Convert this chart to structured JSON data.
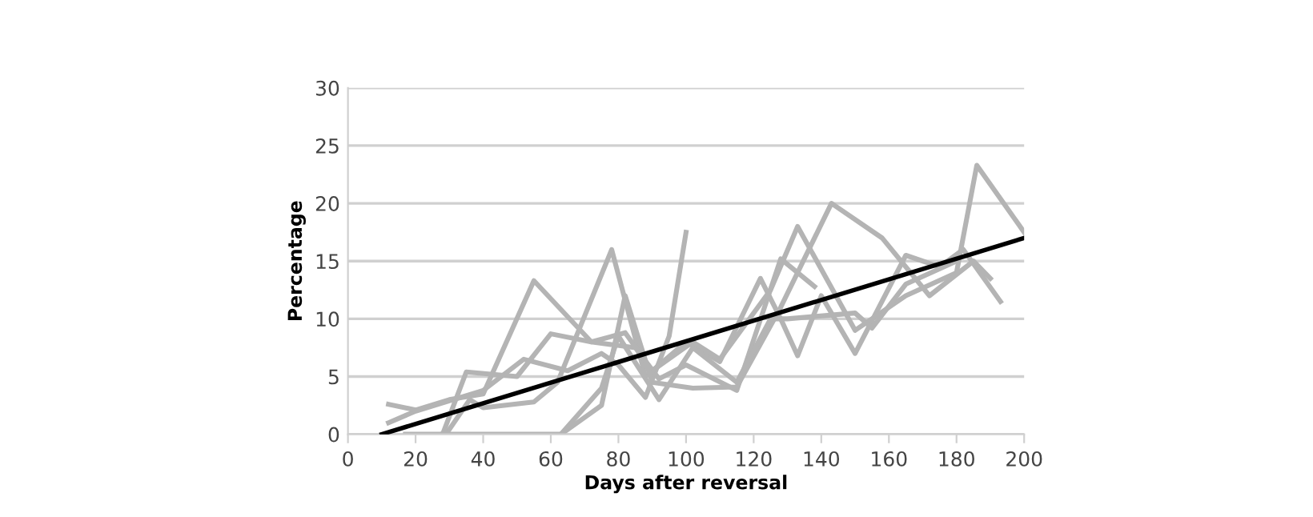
{
  "chart_data": {
    "type": "line",
    "xlabel": "Days after reversal",
    "ylabel": "Percentage",
    "xlim": [
      0,
      200
    ],
    "ylim": [
      0,
      30
    ],
    "xticks": [
      0,
      20,
      40,
      60,
      80,
      100,
      120,
      140,
      160,
      180,
      200
    ],
    "yticks": [
      0,
      5,
      10,
      15,
      20,
      25,
      30
    ],
    "grid": "y",
    "marker": "none",
    "line_style": "solid",
    "series": [
      {
        "color": "#b4b4b4",
        "x": [
          12,
          20,
          40,
          52,
          65,
          75,
          80,
          88,
          95,
          100
        ],
        "values": [
          1,
          2,
          3.8,
          6.5,
          5.5,
          7,
          6,
          3.2,
          8.5,
          17.5
        ]
      },
      {
        "color": "#b4b4b4",
        "x": [
          29,
          36,
          40,
          55,
          62,
          78,
          88,
          100,
          110,
          122,
          128,
          133,
          140,
          150,
          165,
          175,
          182,
          193
        ],
        "values": [
          0,
          3,
          2.3,
          2.8,
          4.5,
          16,
          5,
          8,
          6.3,
          13.5,
          10,
          6.8,
          12,
          7,
          15.5,
          14.5,
          16,
          11.5
        ]
      },
      {
        "color": "#b4b4b4",
        "x": [
          12,
          20,
          30,
          40,
          55,
          72,
          85,
          92,
          100,
          115,
          128,
          138
        ],
        "values": [
          2.6,
          2.1,
          3,
          3.5,
          13.3,
          8,
          7.5,
          4.8,
          6,
          3.8,
          15.2,
          12.8
        ]
      },
      {
        "color": "#b4b4b4",
        "x": [
          17,
          28,
          35,
          50,
          60,
          72,
          82,
          90,
          102,
          110,
          125,
          133,
          150,
          165,
          180,
          186,
          200
        ],
        "values": [
          0,
          0,
          5.4,
          5,
          8.7,
          8,
          8.8,
          5.5,
          8,
          6.5,
          12.5,
          18,
          9,
          12,
          14,
          23.3,
          17.5
        ]
      },
      {
        "color": "#b4b4b4",
        "x": [
          28,
          63,
          75,
          82,
          90,
          102,
          115,
          128,
          143,
          158,
          172,
          185,
          190
        ],
        "values": [
          0,
          0,
          2.5,
          12,
          4.5,
          4,
          4.1,
          11,
          20,
          17,
          12,
          15,
          13.5
        ]
      },
      {
        "color": "#b4b4b4",
        "x": [
          63,
          75,
          80,
          92,
          102,
          115,
          125,
          130,
          150,
          155,
          165,
          180
        ],
        "values": [
          0,
          4,
          8.5,
          3,
          7.5,
          4.5,
          10,
          10,
          10.5,
          9.2,
          13,
          15
        ]
      },
      {
        "color": "#000000",
        "x": [
          10,
          200
        ],
        "values": [
          0,
          17
        ]
      }
    ]
  }
}
